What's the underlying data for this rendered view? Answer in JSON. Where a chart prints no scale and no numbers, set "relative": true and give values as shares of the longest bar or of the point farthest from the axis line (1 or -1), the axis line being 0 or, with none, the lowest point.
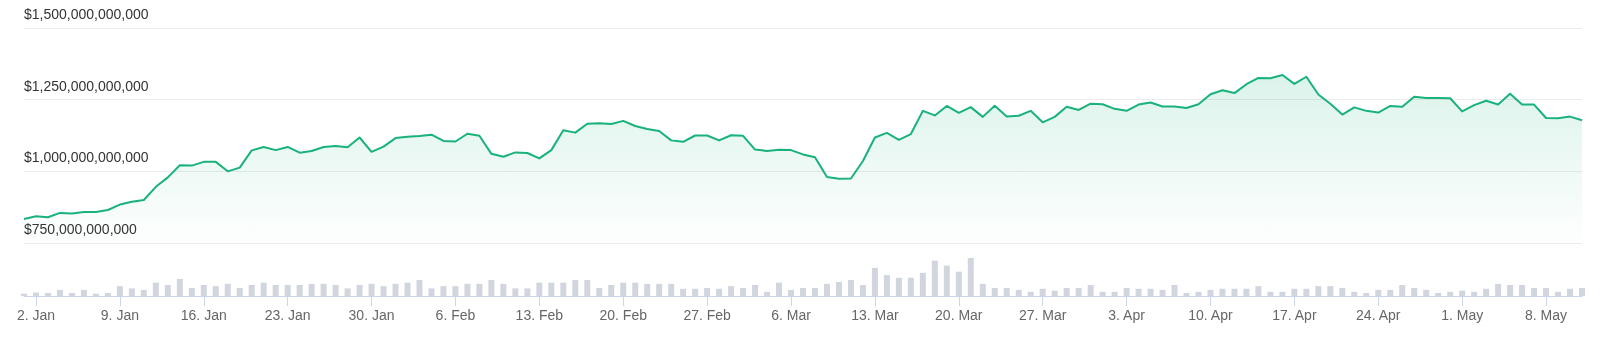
{
  "chart_data": [
    {
      "type": "area",
      "color": "#18b27a",
      "marker": "none",
      "grid": "y",
      "tick_labels": "y",
      "xlim": [
        "--01-01",
        "--05-11"
      ],
      "ylim": [
        750000000000,
        1500000000000
      ],
      "yticks": [
        {
          "value": 750000000000,
          "label": "$750,000,000,000"
        },
        {
          "value": 1000000000000,
          "label": "$1,000,000,000,000"
        },
        {
          "value": 1250000000000,
          "label": "$1,250,000,000,000"
        },
        {
          "value": 1500000000000,
          "label": "$1,500,000,000,000"
        }
      ],
      "x": [
        "--01-01",
        "--01-02",
        "--01-03",
        "--01-04",
        "--01-05",
        "--01-06",
        "--01-07",
        "--01-08",
        "--01-09",
        "--01-10",
        "--01-11",
        "--01-12",
        "--01-13",
        "--01-14",
        "--01-15",
        "--01-16",
        "--01-17",
        "--01-18",
        "--01-19",
        "--01-20",
        "--01-21",
        "--01-22",
        "--01-23",
        "--01-24",
        "--01-25",
        "--01-26",
        "--01-27",
        "--01-28",
        "--01-29",
        "--01-30",
        "--01-31",
        "--02-01",
        "--02-02",
        "--02-03",
        "--02-04",
        "--02-05",
        "--02-06",
        "--02-07",
        "--02-08",
        "--02-09",
        "--02-10",
        "--02-11",
        "--02-12",
        "--02-13",
        "--02-14",
        "--02-15",
        "--02-16",
        "--02-17",
        "--02-18",
        "--02-19",
        "--02-20",
        "--02-21",
        "--02-22",
        "--02-23",
        "--02-24",
        "--02-25",
        "--02-26",
        "--02-27",
        "--02-28",
        "--03-01",
        "--03-02",
        "--03-03",
        "--03-04",
        "--03-05",
        "--03-06",
        "--03-07",
        "--03-08",
        "--03-09",
        "--03-10",
        "--03-11",
        "--03-12",
        "--03-13",
        "--03-14",
        "--03-15",
        "--03-16",
        "--03-17",
        "--03-18",
        "--03-19",
        "--03-20",
        "--03-21",
        "--03-22",
        "--03-23",
        "--03-24",
        "--03-25",
        "--03-26",
        "--03-27",
        "--03-28",
        "--03-29",
        "--03-30",
        "--03-31",
        "--04-01",
        "--04-02",
        "--04-03",
        "--04-04",
        "--04-05",
        "--04-06",
        "--04-07",
        "--04-08",
        "--04-09",
        "--04-10",
        "--04-11",
        "--04-12",
        "--04-13",
        "--04-14",
        "--04-15",
        "--04-16",
        "--04-17",
        "--04-18",
        "--04-19",
        "--04-20",
        "--04-21",
        "--04-22",
        "--04-23",
        "--04-24",
        "--04-25",
        "--04-26",
        "--04-27",
        "--04-28",
        "--04-29",
        "--04-30",
        "--05-01",
        "--05-02",
        "--05-03",
        "--05-04",
        "--05-05",
        "--05-06",
        "--05-07",
        "--05-08",
        "--05-09",
        "--05-10",
        "--05-11"
      ],
      "values": [
        834000000000,
        843000000000,
        840000000000,
        855000000000,
        853000000000,
        858000000000,
        858000000000,
        865000000000,
        884000000000,
        894000000000,
        900000000000,
        946000000000,
        979000000000,
        1021000000000,
        1020000000000,
        1033000000000,
        1033000000000,
        1000000000000,
        1013000000000,
        1073000000000,
        1085000000000,
        1074000000000,
        1085000000000,
        1065000000000,
        1071000000000,
        1085000000000,
        1088000000000,
        1084000000000,
        1118000000000,
        1068000000000,
        1086000000000,
        1116000000000,
        1121000000000,
        1123000000000,
        1128000000000,
        1106000000000,
        1104000000000,
        1131000000000,
        1124000000000,
        1061000000000,
        1051000000000,
        1066000000000,
        1064000000000,
        1045000000000,
        1074000000000,
        1143000000000,
        1135000000000,
        1166000000000,
        1168000000000,
        1165000000000,
        1176000000000,
        1158000000000,
        1148000000000,
        1141000000000,
        1108000000000,
        1103000000000,
        1125000000000,
        1125000000000,
        1108000000000,
        1126000000000,
        1124000000000,
        1076000000000,
        1071000000000,
        1075000000000,
        1074000000000,
        1059000000000,
        1049000000000,
        980000000000,
        974000000000,
        975000000000,
        1036000000000,
        1118000000000,
        1134000000000,
        1110000000000,
        1130000000000,
        1211000000000,
        1195000000000,
        1228000000000,
        1204000000000,
        1224000000000,
        1190000000000,
        1229000000000,
        1191000000000,
        1194000000000,
        1211000000000,
        1171000000000,
        1190000000000,
        1225000000000,
        1214000000000,
        1236000000000,
        1234000000000,
        1218000000000,
        1211000000000,
        1233000000000,
        1240000000000,
        1226000000000,
        1226000000000,
        1221000000000,
        1234000000000,
        1269000000000,
        1283000000000,
        1273000000000,
        1304000000000,
        1326000000000,
        1325000000000,
        1336000000000,
        1305000000000,
        1330000000000,
        1268000000000,
        1236000000000,
        1198000000000,
        1223000000000,
        1211000000000,
        1205000000000,
        1228000000000,
        1225000000000,
        1260000000000,
        1256000000000,
        1256000000000,
        1255000000000,
        1209000000000,
        1231000000000,
        1246000000000,
        1233000000000,
        1271000000000,
        1233000000000,
        1233000000000,
        1186000000000,
        1185000000000,
        1191000000000,
        1178000000000
      ]
    },
    {
      "type": "bar",
      "relative": true,
      "color": "#d1d5de",
      "tick_labels": "x",
      "xlim": [
        "--01-01",
        "--05-11"
      ],
      "xticks": [
        {
          "value": "--01-02",
          "label": "2. Jan"
        },
        {
          "value": "--01-09",
          "label": "9. Jan"
        },
        {
          "value": "--01-16",
          "label": "16. Jan"
        },
        {
          "value": "--01-23",
          "label": "23. Jan"
        },
        {
          "value": "--01-30",
          "label": "30. Jan"
        },
        {
          "value": "--02-06",
          "label": "6. Feb"
        },
        {
          "value": "--02-13",
          "label": "13. Feb"
        },
        {
          "value": "--02-20",
          "label": "20. Feb"
        },
        {
          "value": "--02-27",
          "label": "27. Feb"
        },
        {
          "value": "--03-06",
          "label": "6. Mar"
        },
        {
          "value": "--03-13",
          "label": "13. Mar"
        },
        {
          "value": "--03-20",
          "label": "20. Mar"
        },
        {
          "value": "--03-27",
          "label": "27. Mar"
        },
        {
          "value": "--04-03",
          "label": "3. Apr"
        },
        {
          "value": "--04-10",
          "label": "10. Apr"
        },
        {
          "value": "--04-17",
          "label": "17. Apr"
        },
        {
          "value": "--04-24",
          "label": "24. Apr"
        },
        {
          "value": "--05-01",
          "label": "1. May"
        },
        {
          "value": "--05-08",
          "label": "8. May"
        }
      ],
      "x": [
        "--01-01",
        "--01-02",
        "--01-03",
        "--01-04",
        "--01-05",
        "--01-06",
        "--01-07",
        "--01-08",
        "--01-09",
        "--01-10",
        "--01-11",
        "--01-12",
        "--01-13",
        "--01-14",
        "--01-15",
        "--01-16",
        "--01-17",
        "--01-18",
        "--01-19",
        "--01-20",
        "--01-21",
        "--01-22",
        "--01-23",
        "--01-24",
        "--01-25",
        "--01-26",
        "--01-27",
        "--01-28",
        "--01-29",
        "--01-30",
        "--01-31",
        "--02-01",
        "--02-02",
        "--02-03",
        "--02-04",
        "--02-05",
        "--02-06",
        "--02-07",
        "--02-08",
        "--02-09",
        "--02-10",
        "--02-11",
        "--02-12",
        "--02-13",
        "--02-14",
        "--02-15",
        "--02-16",
        "--02-17",
        "--02-18",
        "--02-19",
        "--02-20",
        "--02-21",
        "--02-22",
        "--02-23",
        "--02-24",
        "--02-25",
        "--02-26",
        "--02-27",
        "--02-28",
        "--03-01",
        "--03-02",
        "--03-03",
        "--03-04",
        "--03-05",
        "--03-06",
        "--03-07",
        "--03-08",
        "--03-09",
        "--03-10",
        "--03-11",
        "--03-12",
        "--03-13",
        "--03-14",
        "--03-15",
        "--03-16",
        "--03-17",
        "--03-18",
        "--03-19",
        "--03-20",
        "--03-21",
        "--03-22",
        "--03-23",
        "--03-24",
        "--03-25",
        "--03-26",
        "--03-27",
        "--03-28",
        "--03-29",
        "--03-30",
        "--03-31",
        "--04-01",
        "--04-02",
        "--04-03",
        "--04-04",
        "--04-05",
        "--04-06",
        "--04-07",
        "--04-08",
        "--04-09",
        "--04-10",
        "--04-11",
        "--04-12",
        "--04-13",
        "--04-14",
        "--04-15",
        "--04-16",
        "--04-17",
        "--04-18",
        "--04-19",
        "--04-20",
        "--04-21",
        "--04-22",
        "--04-23",
        "--04-24",
        "--04-25",
        "--04-26",
        "--04-27",
        "--04-28",
        "--04-29",
        "--04-30",
        "--05-01",
        "--05-02",
        "--05-03",
        "--05-04",
        "--05-05",
        "--05-06",
        "--05-07",
        "--05-08",
        "--05-09",
        "--05-10",
        "--05-11"
      ],
      "values": [
        0.06,
        0.09,
        0.08,
        0.16,
        0.08,
        0.16,
        0.06,
        0.08,
        0.26,
        0.2,
        0.16,
        0.35,
        0.29,
        0.45,
        0.21,
        0.29,
        0.26,
        0.32,
        0.21,
        0.29,
        0.35,
        0.29,
        0.29,
        0.29,
        0.32,
        0.32,
        0.29,
        0.2,
        0.29,
        0.32,
        0.26,
        0.32,
        0.35,
        0.42,
        0.2,
        0.26,
        0.26,
        0.32,
        0.32,
        0.42,
        0.32,
        0.2,
        0.2,
        0.35,
        0.35,
        0.35,
        0.42,
        0.42,
        0.21,
        0.29,
        0.35,
        0.35,
        0.32,
        0.32,
        0.32,
        0.19,
        0.19,
        0.21,
        0.19,
        0.26,
        0.21,
        0.29,
        0.11,
        0.35,
        0.16,
        0.21,
        0.21,
        0.32,
        0.37,
        0.42,
        0.29,
        0.74,
        0.55,
        0.48,
        0.48,
        0.61,
        0.93,
        0.8,
        0.64,
        1,
        0.32,
        0.21,
        0.21,
        0.16,
        0.11,
        0.19,
        0.14,
        0.21,
        0.21,
        0.29,
        0.11,
        0.11,
        0.21,
        0.19,
        0.19,
        0.16,
        0.29,
        0.08,
        0.11,
        0.16,
        0.19,
        0.19,
        0.19,
        0.26,
        0.11,
        0.11,
        0.19,
        0.19,
        0.26,
        0.26,
        0.21,
        0.11,
        0.08,
        0.16,
        0.16,
        0.29,
        0.21,
        0.16,
        0.08,
        0.11,
        0.14,
        0.11,
        0.19,
        0.32,
        0.29,
        0.29,
        0.21,
        0.21,
        0.11,
        0.19,
        0.21
      ]
    }
  ]
}
